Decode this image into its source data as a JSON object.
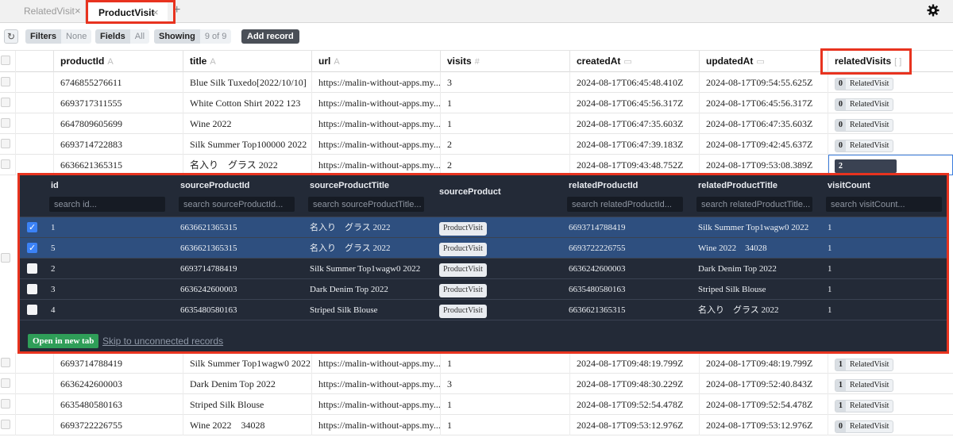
{
  "tabs": [
    {
      "label": "RelatedVisit",
      "active": false
    },
    {
      "label": "ProductVisit",
      "active": true
    }
  ],
  "tab_add": "+",
  "tab_close": "×",
  "toolbar": {
    "filters_label": "Filters",
    "filters_value": "None",
    "fields_label": "Fields",
    "fields_value": "All",
    "showing_label": "Showing",
    "showing_value": "9 of 9",
    "add_record_label": "Add record"
  },
  "columns": [
    {
      "label": "productId",
      "icon": "A"
    },
    {
      "label": "title",
      "icon": "A"
    },
    {
      "label": "url",
      "icon": "A"
    },
    {
      "label": "visits",
      "icon": "#"
    },
    {
      "label": "createdAt",
      "icon": "▭"
    },
    {
      "label": "updatedAt",
      "icon": "▭"
    },
    {
      "label": "relatedVisits",
      "icon": "[ ]"
    }
  ],
  "rows_top": [
    {
      "productId": "6746855276611",
      "title": "Blue Silk Tuxedo[2022/10/10]",
      "url": "https://malin-without-apps.my...",
      "visits": "3",
      "createdAt": "2024-08-17T06:45:48.410Z",
      "updatedAt": "2024-08-17T09:54:55.625Z",
      "relCount": "0",
      "relLabel": "RelatedVisit"
    },
    {
      "productId": "6693717311555",
      "title": "White Cotton Shirt 2022 123",
      "url": "https://malin-without-apps.my...",
      "visits": "1",
      "createdAt": "2024-08-17T06:45:56.317Z",
      "updatedAt": "2024-08-17T06:45:56.317Z",
      "relCount": "0",
      "relLabel": "RelatedVisit"
    },
    {
      "productId": "6647809605699",
      "title": "Wine 2022",
      "url": "https://malin-without-apps.my...",
      "visits": "1",
      "createdAt": "2024-08-17T06:47:35.603Z",
      "updatedAt": "2024-08-17T06:47:35.603Z",
      "relCount": "0",
      "relLabel": "RelatedVisit"
    },
    {
      "productId": "6693714722883",
      "title": "Silk Summer Top100000 2022",
      "url": "https://malin-without-apps.my...",
      "visits": "2",
      "createdAt": "2024-08-17T06:47:39.183Z",
      "updatedAt": "2024-08-17T09:42:45.637Z",
      "relCount": "0",
      "relLabel": "RelatedVisit"
    },
    {
      "productId": "6636621365315",
      "title": "名入り　グラス 2022",
      "url": "https://malin-without-apps.my...",
      "visits": "2",
      "createdAt": "2024-08-17T09:43:48.752Z",
      "updatedAt": "2024-08-17T09:53:08.389Z",
      "relCount": "2",
      "relLabel": ""
    }
  ],
  "rows_bottom": [
    {
      "productId": "6693714788419",
      "title": "Silk Summer Top1wagw0 2022",
      "url": "https://malin-without-apps.my...",
      "visits": "1",
      "createdAt": "2024-08-17T09:48:19.799Z",
      "updatedAt": "2024-08-17T09:48:19.799Z",
      "relCount": "1",
      "relLabel": "RelatedVisit"
    },
    {
      "productId": "6636242600003",
      "title": "Dark Denim Top 2022",
      "url": "https://malin-without-apps.my...",
      "visits": "3",
      "createdAt": "2024-08-17T09:48:30.229Z",
      "updatedAt": "2024-08-17T09:52:40.843Z",
      "relCount": "1",
      "relLabel": "RelatedVisit"
    },
    {
      "productId": "6635480580163",
      "title": "Striped Silk Blouse",
      "url": "https://malin-without-apps.my...",
      "visits": "1",
      "createdAt": "2024-08-17T09:52:54.478Z",
      "updatedAt": "2024-08-17T09:52:54.478Z",
      "relCount": "1",
      "relLabel": "RelatedVisit"
    },
    {
      "productId": "6693722226755",
      "title": "Wine 2022　34028",
      "url": "https://malin-without-apps.my...",
      "visits": "1",
      "createdAt": "2024-08-17T09:53:12.976Z",
      "updatedAt": "2024-08-17T09:53:12.976Z",
      "relCount": "0",
      "relLabel": "RelatedVisit"
    }
  ],
  "subtable": {
    "columns": [
      {
        "label": "id",
        "placeholder": "search id..."
      },
      {
        "label": "sourceProductId",
        "placeholder": "search sourceProductId..."
      },
      {
        "label": "sourceProductTitle",
        "placeholder": "search sourceProductTitle..."
      },
      {
        "label": "sourceProduct",
        "placeholder": ""
      },
      {
        "label": "relatedProductId",
        "placeholder": "search relatedProductId..."
      },
      {
        "label": "relatedProductTitle",
        "placeholder": "search relatedProductTitle..."
      },
      {
        "label": "visitCount",
        "placeholder": "search visitCount..."
      }
    ],
    "rows": [
      {
        "checked": true,
        "id": "1",
        "sourceProductId": "6636621365315",
        "sourceProductTitle": "名入り　グラス 2022",
        "sourceProduct": "ProductVisit",
        "relatedProductId": "6693714788419",
        "relatedProductTitle": "Silk Summer Top1wagw0 2022",
        "visitCount": "1"
      },
      {
        "checked": true,
        "id": "5",
        "sourceProductId": "6636621365315",
        "sourceProductTitle": "名入り　グラス 2022",
        "sourceProduct": "ProductVisit",
        "relatedProductId": "6693722226755",
        "relatedProductTitle": "Wine 2022　34028",
        "visitCount": "1"
      },
      {
        "checked": false,
        "id": "2",
        "sourceProductId": "6693714788419",
        "sourceProductTitle": "Silk Summer Top1wagw0 2022",
        "sourceProduct": "ProductVisit",
        "relatedProductId": "6636242600003",
        "relatedProductTitle": "Dark Denim Top 2022",
        "visitCount": "1"
      },
      {
        "checked": false,
        "id": "3",
        "sourceProductId": "6636242600003",
        "sourceProductTitle": "Dark Denim Top 2022",
        "sourceProduct": "ProductVisit",
        "relatedProductId": "6635480580163",
        "relatedProductTitle": "Striped Silk Blouse",
        "visitCount": "1"
      },
      {
        "checked": false,
        "id": "4",
        "sourceProductId": "6635480580163",
        "sourceProductTitle": "Striped Silk Blouse",
        "sourceProduct": "ProductVisit",
        "relatedProductId": "6636621365315",
        "relatedProductTitle": "名入り　グラス 2022",
        "visitCount": "1"
      }
    ],
    "open_new_tab_label": "Open in new tab",
    "skip_link_label": "Skip to unconnected records"
  },
  "colors": {
    "accent": "#3b7ddd",
    "annotation": "#e8331f",
    "panel_bg": "#232a37",
    "selected_row": "#2e4f7f",
    "success": "#2f9e58"
  }
}
